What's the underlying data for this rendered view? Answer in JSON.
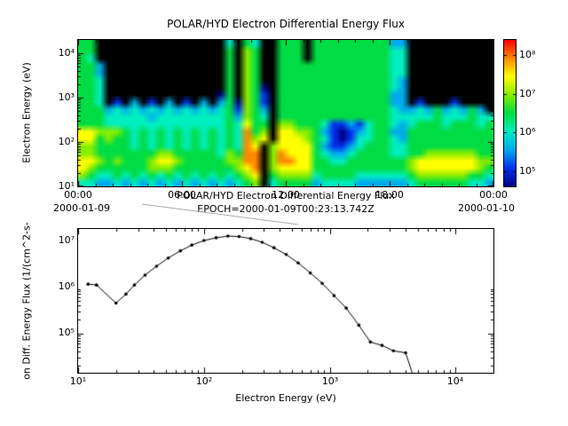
{
  "figure": {
    "background": "#ffffff",
    "connector_line_color": "#aaaaaa"
  },
  "chart_data": [
    {
      "type": "heatmap",
      "title": "POLAR/HYD  Electron Differential Energy Flux",
      "ylabel": "Electron Energy (eV)",
      "x_ticklabels": [
        "00:00",
        "06:00",
        "12:00",
        "18:00",
        "00:00"
      ],
      "x_date_left": "2000-01-09",
      "x_date_right": "2000-01-10",
      "y_ticklabels": [
        "10⁴",
        "10³",
        "10²",
        "10¹"
      ],
      "ylim_log": [
        1.0,
        4.3
      ],
      "x_hours": [
        0,
        24
      ],
      "colorbar_ticklabels": [
        "10⁸",
        "10⁷",
        "10⁶",
        "10⁵"
      ],
      "colorbar_log_range": [
        4.6,
        8.4
      ],
      "palette": [
        "#000000",
        "#000088",
        "#0033EE",
        "#00AAEE",
        "#00EEC0",
        "#00DD44",
        "#88EE00",
        "#FFFF00",
        "#FF8800",
        "#FF0000"
      ],
      "grid_note": "rows top(high energy) to bottom(low energy), 48 half-hour columns, levels 0=below scale(black),1-9 map to log10 flux 4.6-8.4",
      "grid_rows": [
        "550000000000000004054005550555555555330000000000",
        "550000000000000005065005550555555555440000000000",
        "540000000000000005065005550555555555440000000000",
        "553000000000000005065005555555555555440000000000",
        "553000000000000005065005555555555555440000000000",
        "554000000000000005065005555555555555430000000000",
        "554000000000000005065105555555555555430000000000",
        "554000000000000015065205555555555555330000000000",
        "554020302030203035165205555555555555330200020000",
        "555343434343434345265305555555555555433435343530",
        "555444443444444445365405555555555555444445444544",
        "555444444444444445475506655542232455434555455545",
        "776665454545454545485607766532123455335555555555",
        "775655454545454545486707776542124455435555555555",
        "665555454545454545487067777532234555445555555555",
        "665555555665555546588068777543345555445566666655",
        "776565556776555556688068877554455555556777777766",
        "765555556665555555678067777555555555556777777765",
        "654454545454545454567056666455554444445666666554",
        "443343434343434343456045555344443333334555555443"
      ]
    },
    {
      "type": "line",
      "title": "POLAR/HYD  Electron Differential Energy Flux",
      "subtitle": "EPOCH=2000-01-09T00:23:13.742Z",
      "xlabel": "Electron Energy (eV)",
      "ylabel": "on Diff. Energy Flux (1/(cm^2-s-",
      "x_ticklabels": [
        "10¹",
        "10²",
        "10³",
        "10⁴"
      ],
      "y_ticklabels": [
        "10⁷",
        "10⁶",
        "10⁵"
      ],
      "xlim_log": [
        1.0,
        4.3
      ],
      "ylim_log": [
        4.15,
        7.25
      ],
      "points": [
        [
          12,
          1150000
        ],
        [
          14,
          1100000
        ],
        [
          20,
          450000
        ],
        [
          24,
          700000
        ],
        [
          28,
          1100000
        ],
        [
          34,
          1800000
        ],
        [
          42,
          2800000
        ],
        [
          52,
          4200000
        ],
        [
          65,
          6000000
        ],
        [
          80,
          8000000
        ],
        [
          100,
          10000000
        ],
        [
          125,
          11500000
        ],
        [
          155,
          12500000
        ],
        [
          190,
          12200000
        ],
        [
          235,
          11000000
        ],
        [
          290,
          9200000
        ],
        [
          360,
          7000000
        ],
        [
          450,
          5000000
        ],
        [
          560,
          3300000
        ],
        [
          700,
          2000000
        ],
        [
          870,
          1200000
        ],
        [
          1080,
          650000
        ],
        [
          1350,
          350000
        ],
        [
          1700,
          150000
        ],
        [
          2100,
          65000
        ],
        [
          2600,
          55000
        ],
        [
          3200,
          42000
        ],
        [
          4000,
          38000
        ],
        [
          4600,
          12000
        ]
      ]
    }
  ]
}
